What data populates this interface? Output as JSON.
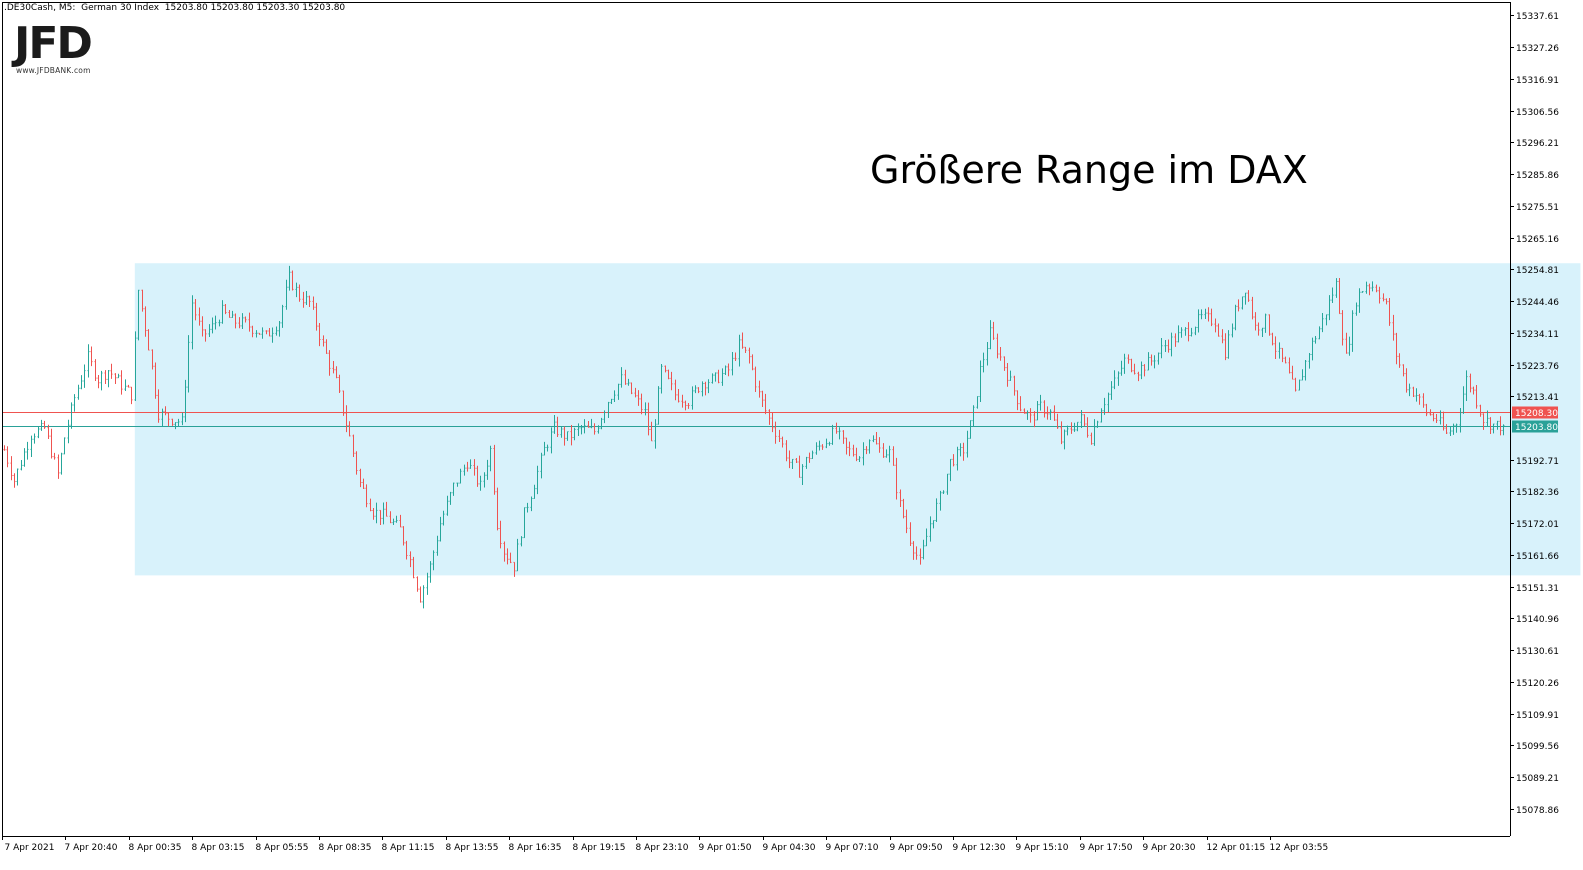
{
  "header": {
    "symbol_line": ".DE30Cash, M5:  German 30 Index  15203.80 15203.80 15203.30 15203.80"
  },
  "logo": {
    "text": "JFD",
    "url": "www.JFDBANK.com"
  },
  "annotation": {
    "headline": "Größere Range im DAX"
  },
  "colors": {
    "bull": "#26a69a",
    "bear": "#ef5350",
    "range_fill": "#d8f2fb",
    "bid_line": "#2aa198",
    "ask_line": "#ef5350",
    "axis": "#000000"
  },
  "chart_data": {
    "type": "candlestick",
    "symbol": ".DE30Cash",
    "timeframe": "M5",
    "ylim": [
      15070.0,
      15342.0
    ],
    "y_ticks": [
      15337.61,
      15327.26,
      15316.91,
      15306.56,
      15296.21,
      15285.86,
      15275.51,
      15265.16,
      15254.81,
      15244.46,
      15234.11,
      15223.76,
      15213.41,
      15192.71,
      15182.36,
      15172.01,
      15161.66,
      15151.31,
      15140.96,
      15130.61,
      15120.26,
      15109.91,
      15099.56,
      15089.21,
      15078.86
    ],
    "x_ticks": [
      "7 Apr 2021",
      "7 Apr 20:40",
      "8 Apr 00:35",
      "8 Apr 03:15",
      "8 Apr 05:55",
      "8 Apr 08:35",
      "8 Apr 11:15",
      "8 Apr 13:55",
      "8 Apr 16:35",
      "8 Apr 19:15",
      "8 Apr 23:10",
      "9 Apr 01:50",
      "9 Apr 04:30",
      "9 Apr 07:10",
      "9 Apr 09:50",
      "9 Apr 12:30",
      "9 Apr 15:10",
      "9 Apr 17:50",
      "9 Apr 20:30",
      "12 Apr 01:15",
      "12 Apr 03:55"
    ],
    "price_labels": [
      {
        "label": "15208.30",
        "value": 15208.3,
        "color": "#ef5350"
      },
      {
        "label": "15203.80",
        "value": 15203.8,
        "color": "#2aa198"
      }
    ],
    "range_box": {
      "top": 15256.8,
      "bottom": 15155.0,
      "start_index": 39,
      "end_index": 470
    },
    "close_path": [
      [
        0,
        15196
      ],
      [
        3,
        15186
      ],
      [
        8,
        15201
      ],
      [
        12,
        15203
      ],
      [
        16,
        15188
      ],
      [
        18,
        15200
      ],
      [
        21,
        15213
      ],
      [
        25,
        15226
      ],
      [
        28,
        15219
      ],
      [
        31,
        15222
      ],
      [
        36,
        15216
      ],
      [
        38,
        15214
      ],
      [
        40,
        15248
      ],
      [
        43,
        15230
      ],
      [
        46,
        15208
      ],
      [
        50,
        15206
      ],
      [
        53,
        15205
      ],
      [
        56,
        15244
      ],
      [
        59,
        15233
      ],
      [
        62,
        15236
      ],
      [
        65,
        15241
      ],
      [
        68,
        15238
      ],
      [
        72,
        15237
      ],
      [
        75,
        15235
      ],
      [
        78,
        15233
      ],
      [
        82,
        15238
      ],
      [
        85,
        15252
      ],
      [
        88,
        15246
      ],
      [
        91,
        15244
      ],
      [
        95,
        15230
      ],
      [
        99,
        15218
      ],
      [
        103,
        15200
      ],
      [
        106,
        15185
      ],
      [
        110,
        15176
      ],
      [
        114,
        15174
      ],
      [
        118,
        15170
      ],
      [
        121,
        15160
      ],
      [
        124,
        15148
      ],
      [
        127,
        15158
      ],
      [
        130,
        15172
      ],
      [
        134,
        15184
      ],
      [
        138,
        15192
      ],
      [
        142,
        15184
      ],
      [
        145,
        15196
      ],
      [
        147,
        15172
      ],
      [
        149,
        15163
      ],
      [
        152,
        15158
      ],
      [
        155,
        15175
      ],
      [
        158,
        15185
      ],
      [
        161,
        15196
      ],
      [
        164,
        15203
      ],
      [
        168,
        15200
      ],
      [
        172,
        15203
      ],
      [
        176,
        15202
      ],
      [
        180,
        15212
      ],
      [
        184,
        15219
      ],
      [
        188,
        15213
      ],
      [
        191,
        15208
      ],
      [
        193,
        15198
      ],
      [
        196,
        15222
      ],
      [
        200,
        15214
      ],
      [
        204,
        15212
      ],
      [
        208,
        15218
      ],
      [
        212,
        15219
      ],
      [
        216,
        15222
      ],
      [
        219,
        15230
      ],
      [
        222,
        15226
      ],
      [
        225,
        15214
      ],
      [
        228,
        15206
      ],
      [
        231,
        15200
      ],
      [
        234,
        15192
      ],
      [
        237,
        15189
      ],
      [
        240,
        15194
      ],
      [
        244,
        15198
      ],
      [
        248,
        15202
      ],
      [
        251,
        15196
      ],
      [
        255,
        15194
      ],
      [
        258,
        15200
      ],
      [
        261,
        15196
      ],
      [
        264,
        15195
      ],
      [
        267,
        15178
      ],
      [
        270,
        15167
      ],
      [
        273,
        15159
      ],
      [
        276,
        15172
      ],
      [
        279,
        15180
      ],
      [
        282,
        15192
      ],
      [
        286,
        15196
      ],
      [
        289,
        15208
      ],
      [
        291,
        15222
      ],
      [
        294,
        15234
      ],
      [
        297,
        15226
      ],
      [
        300,
        15218
      ],
      [
        303,
        15210
      ],
      [
        306,
        15206
      ],
      [
        309,
        15210
      ],
      [
        312,
        15208
      ],
      [
        315,
        15199
      ],
      [
        318,
        15203
      ],
      [
        321,
        15206
      ],
      [
        324,
        15200
      ],
      [
        327,
        15210
      ],
      [
        331,
        15218
      ],
      [
        334,
        15225
      ],
      [
        338,
        15222
      ],
      [
        342,
        15225
      ],
      [
        346,
        15230
      ],
      [
        350,
        15233
      ],
      [
        354,
        15236
      ],
      [
        357,
        15239
      ],
      [
        361,
        15238
      ],
      [
        364,
        15228
      ],
      [
        367,
        15241
      ],
      [
        370,
        15249
      ],
      [
        373,
        15236
      ],
      [
        376,
        15238
      ],
      [
        379,
        15229
      ],
      [
        382,
        15223
      ],
      [
        385,
        15214
      ],
      [
        389,
        15228
      ],
      [
        393,
        15238
      ],
      [
        397,
        15250
      ],
      [
        400,
        15226
      ],
      [
        403,
        15245
      ],
      [
        406,
        15250
      ],
      [
        409,
        15249
      ],
      [
        412,
        15243
      ],
      [
        415,
        15227
      ],
      [
        418,
        15217
      ],
      [
        421,
        15214
      ],
      [
        424,
        15208
      ],
      [
        427,
        15206
      ],
      [
        430,
        15201
      ],
      [
        433,
        15205
      ],
      [
        436,
        15219
      ],
      [
        438,
        15215
      ],
      [
        441,
        15206
      ],
      [
        444,
        15204
      ],
      [
        447,
        15203.8
      ]
    ]
  }
}
